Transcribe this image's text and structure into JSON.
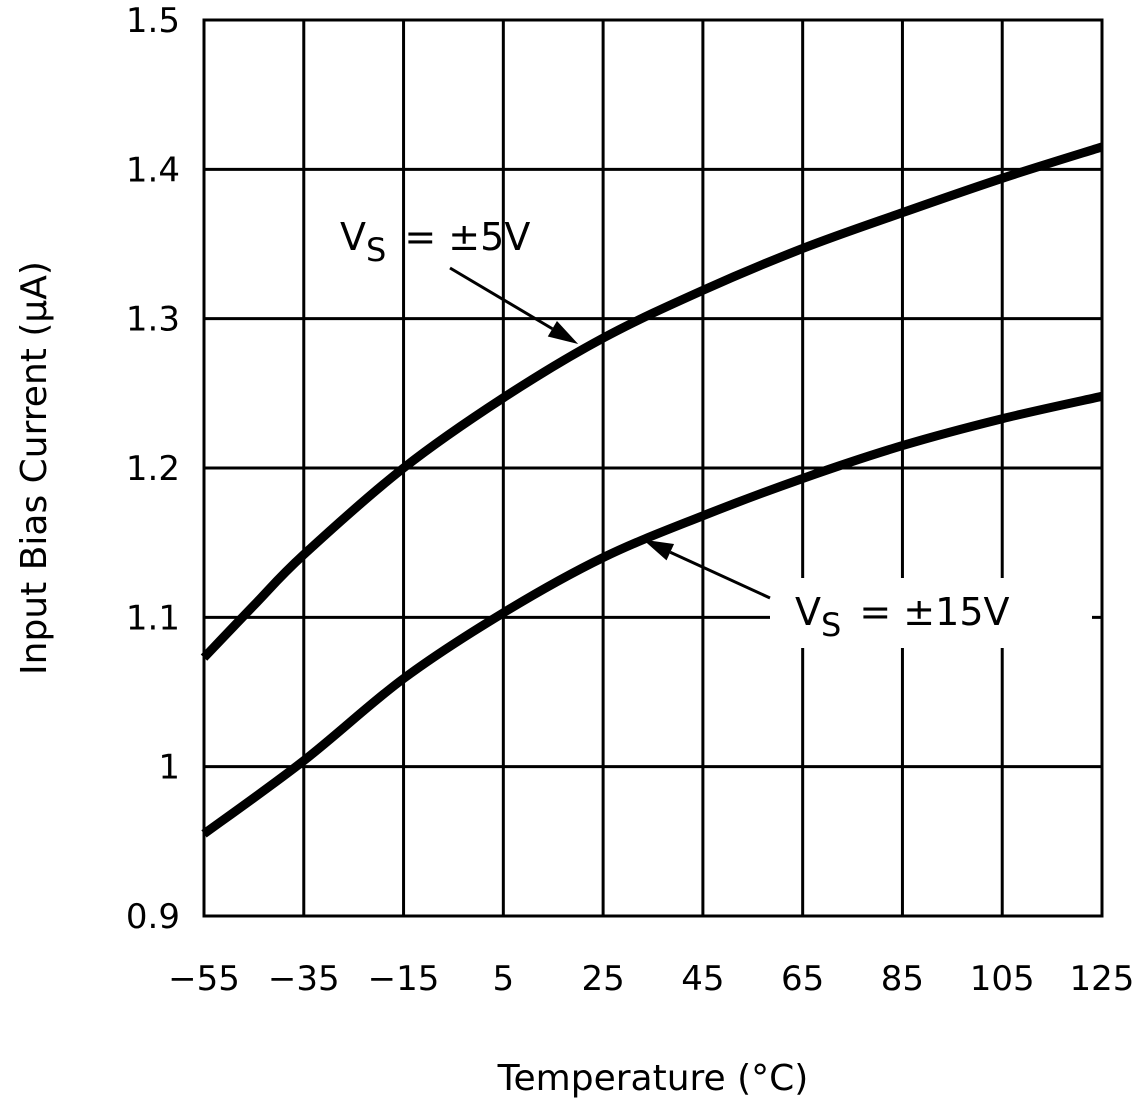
{
  "chart_data": {
    "type": "line",
    "title": "",
    "xlabel": "Temperature (°C)",
    "ylabel": "Input Bias Current (μA)",
    "xlim": [
      -55,
      125
    ],
    "ylim": [
      0.9,
      1.5
    ],
    "xticks": [
      -55,
      -35,
      -15,
      5,
      25,
      45,
      65,
      85,
      105,
      125
    ],
    "xtick_labels": [
      "−55",
      "−35",
      "−15",
      "5",
      "25",
      "45",
      "65",
      "85",
      "105",
      "125"
    ],
    "yticks": [
      0.9,
      1.0,
      1.1,
      1.2,
      1.3,
      1.4,
      1.5
    ],
    "ytick_labels": [
      "0.9",
      "1",
      "1.1",
      "1.2",
      "1.3",
      "1.4",
      "1.5"
    ],
    "grid": true,
    "colors": {
      "line": "#000000",
      "grid": "#000000",
      "background": "#ffffff"
    },
    "series": [
      {
        "name": "VS = ±5V",
        "x": [
          -55,
          -45,
          -35,
          -15,
          5,
          25,
          45,
          65,
          85,
          105,
          125
        ],
        "y": [
          1.073,
          1.108,
          1.142,
          1.2,
          1.247,
          1.287,
          1.319,
          1.347,
          1.371,
          1.394,
          1.415
        ]
      },
      {
        "name": "VS = ±15V",
        "x": [
          -55,
          -35,
          -15,
          5,
          25,
          45,
          65,
          85,
          105,
          125
        ],
        "y": [
          0.955,
          1.004,
          1.059,
          1.103,
          1.14,
          1.168,
          1.193,
          1.215,
          1.233,
          1.248
        ]
      }
    ],
    "annotations": [
      {
        "label_main": "V",
        "label_sub": "S",
        "label_rest": " = ±5V",
        "points_to": {
          "x": 20,
          "y": 1.283
        }
      },
      {
        "label_main": "V",
        "label_sub": "S",
        "label_rest": " = ±15V",
        "points_to": {
          "x": 33,
          "y": 1.152
        }
      }
    ]
  }
}
